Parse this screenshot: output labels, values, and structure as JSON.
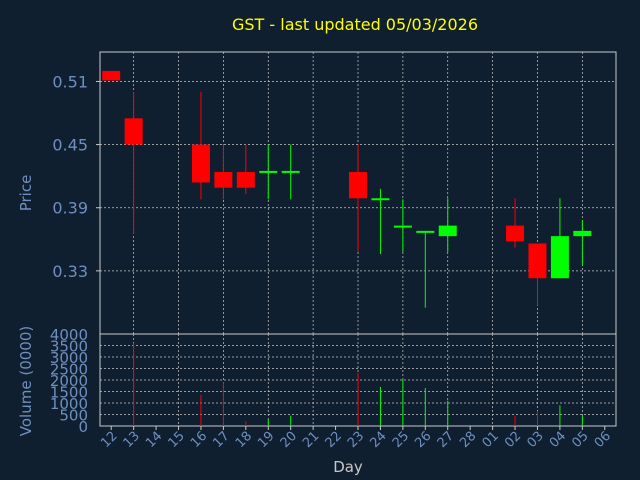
{
  "chart_data": {
    "type": "candlestick",
    "title": "GST - last updated 05/03/2026",
    "price_panel": {
      "ylabel": "Price",
      "ylim": [
        0.27,
        0.538
      ],
      "yticks": [
        0.51,
        0.45,
        0.39,
        0.33
      ],
      "ytick_labels": [
        "0.51",
        "0.45",
        "0.39",
        "0.33"
      ]
    },
    "volume_panel": {
      "ylabel": "Volume (0000)",
      "ylim": [
        0,
        4000
      ],
      "yticks": [
        0,
        500,
        1000,
        1500,
        2000,
        2500,
        3000,
        3500,
        4000
      ],
      "ytick_labels": [
        "0",
        "500",
        "1000",
        "1500",
        "2000",
        "2500",
        "3000",
        "3500",
        "4000"
      ]
    },
    "xlabel": "Day",
    "x_tick_labels": [
      "12",
      "13",
      "14",
      "15",
      "16",
      "17",
      "18",
      "19",
      "20",
      "21",
      "22",
      "23",
      "24",
      "25",
      "26",
      "27",
      "28",
      "01",
      "02",
      "03",
      "04",
      "05",
      "06"
    ],
    "grid": true,
    "colors": {
      "background": "#0f1f2f",
      "title": "#ffff00",
      "axis_text": "#6f8fbf",
      "grid": "#c8c8c8",
      "up": "#00ff00",
      "down": "#ff0000"
    },
    "candles": [
      {
        "day": "12",
        "open": 0.52,
        "high": 0.52,
        "low": 0.511,
        "close": 0.511,
        "volume": 0
      },
      {
        "day": "13",
        "open": 0.475,
        "high": 0.5,
        "low": 0.365,
        "close": 0.45,
        "volume": 3600
      },
      {
        "day": "16",
        "open": 0.45,
        "high": 0.5,
        "low": 0.398,
        "close": 0.414,
        "volume": 1350
      },
      {
        "day": "17",
        "open": 0.424,
        "high": 0.45,
        "low": 0.398,
        "close": 0.409,
        "volume": 1900
      },
      {
        "day": "18",
        "open": 0.424,
        "high": 0.45,
        "low": 0.403,
        "close": 0.409,
        "volume": 200
      },
      {
        "day": "19",
        "open": 0.424,
        "high": 0.45,
        "low": 0.398,
        "close": 0.425,
        "volume": 300
      },
      {
        "day": "20",
        "open": 0.424,
        "high": 0.45,
        "low": 0.398,
        "close": 0.425,
        "volume": 450
      },
      {
        "day": "23",
        "open": 0.424,
        "high": 0.45,
        "low": 0.348,
        "close": 0.399,
        "volume": 2300
      },
      {
        "day": "24",
        "open": 0.398,
        "high": 0.408,
        "low": 0.346,
        "close": 0.399,
        "volume": 1700
      },
      {
        "day": "25",
        "open": 0.372,
        "high": 0.398,
        "low": 0.348,
        "close": 0.373,
        "volume": 2000
      },
      {
        "day": "26",
        "open": 0.367,
        "high": 0.368,
        "low": 0.295,
        "close": 0.368,
        "volume": 1650
      },
      {
        "day": "27",
        "open": 0.363,
        "high": 0.399,
        "low": 0.348,
        "close": 0.373,
        "volume": 1100
      },
      {
        "day": "02",
        "open": 0.373,
        "high": 0.399,
        "low": 0.352,
        "close": 0.358,
        "volume": 450
      },
      {
        "day": "03",
        "open": 0.356,
        "high": 0.356,
        "low": 0.297,
        "close": 0.323,
        "volume": 650
      },
      {
        "day": "04",
        "open": 0.323,
        "high": 0.399,
        "low": 0.323,
        "close": 0.363,
        "volume": 900
      },
      {
        "day": "05",
        "open": 0.363,
        "high": 0.378,
        "low": 0.335,
        "close": 0.368,
        "volume": 450
      }
    ]
  }
}
